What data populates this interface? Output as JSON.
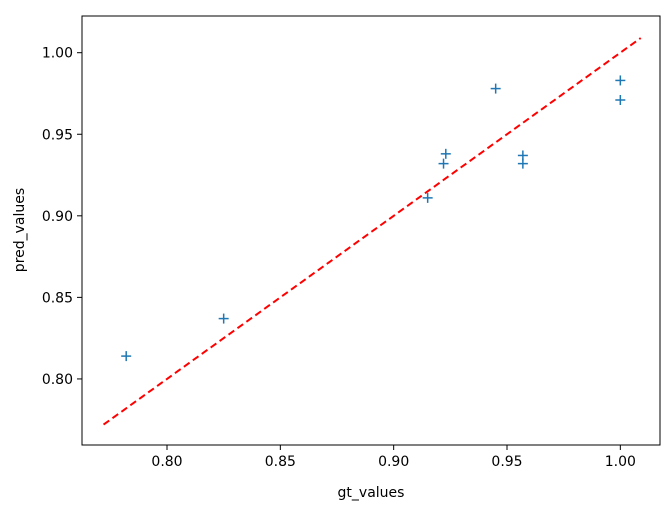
{
  "chart_data": {
    "type": "scatter",
    "title": "",
    "xlabel": "gt_values",
    "ylabel": "pred_values",
    "xlim": [
      0.7625,
      1.0175
    ],
    "ylim": [
      0.7595,
      1.0225
    ],
    "xticks": [
      0.8,
      0.85,
      0.9,
      0.95,
      1.0
    ],
    "yticks": [
      0.8,
      0.85,
      0.9,
      0.95,
      1.0
    ],
    "xtick_labels": [
      "0.80",
      "0.85",
      "0.90",
      "0.95",
      "1.00"
    ],
    "ytick_labels": [
      "0.80",
      "0.85",
      "0.90",
      "0.95",
      "1.00"
    ],
    "grid": false,
    "series": [
      {
        "marker": "+",
        "color": "#1f77b4",
        "points": [
          {
            "x": 0.782,
            "y": 0.814
          },
          {
            "x": 0.825,
            "y": 0.837
          },
          {
            "x": 0.915,
            "y": 0.911
          },
          {
            "x": 0.922,
            "y": 0.932
          },
          {
            "x": 0.923,
            "y": 0.938
          },
          {
            "x": 0.945,
            "y": 0.978
          },
          {
            "x": 0.957,
            "y": 0.932
          },
          {
            "x": 0.957,
            "y": 0.937
          },
          {
            "x": 1.0,
            "y": 0.983
          },
          {
            "x": 1.0,
            "y": 0.971
          }
        ]
      }
    ],
    "reference_line": {
      "style": "dashed",
      "color": "#ff0000",
      "from": {
        "x": 0.772,
        "y": 0.772
      },
      "to": {
        "x": 1.009,
        "y": 1.009
      }
    }
  }
}
